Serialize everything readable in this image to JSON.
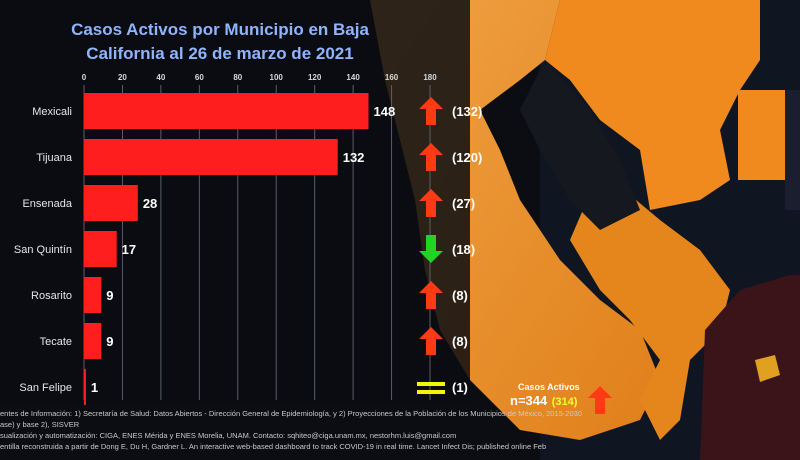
{
  "title_line1": "Casos Activos por Municipio en Baja",
  "title_line2": "California al 26 de marzo de 2021",
  "chart_data": {
    "type": "bar",
    "orientation": "horizontal",
    "title": "Casos Activos por Municipio en Baja California al 26 de marzo de 2021",
    "categories": [
      "Mexicali",
      "Tijuana",
      "Ensenada",
      "San Quintín",
      "Rosarito",
      "Tecate",
      "San Felipe"
    ],
    "values": [
      148,
      132,
      28,
      17,
      9,
      9,
      1
    ],
    "previous_labels": [
      "(132)",
      "(120)",
      "(27)",
      "(18)",
      "(8)",
      "(8)",
      "(1)"
    ],
    "trend": [
      "up",
      "up",
      "up",
      "down",
      "up",
      "up",
      "equal"
    ],
    "xticks": [
      0,
      20,
      40,
      60,
      80,
      100,
      120,
      140,
      160,
      180
    ],
    "xlim": [
      0,
      180
    ],
    "bar_color": "#ff1e1e",
    "grid": true
  },
  "totals": {
    "label": "Casos Activos",
    "value": "n=344",
    "previous": "(314)",
    "trend": "up"
  },
  "footer": {
    "line1": "entes de Información: 1) Secretaría de Salud: Datos Abiertos - Dirección General de Epidemiología, y 2) Proyecciones de la Población de los Municipios de México, 2015-2030",
    "line2": "ase) y base 2), SISVER",
    "line3": "sualización y automatización: CIGA, ENES Mérida y ENES Morelia, UNAM. Contacto: sqhiteo@ciga.unam.mx, nestorhm.luis@gmail.com",
    "line4": "entilla reconstruida a partir de Dong E, Du H, Gardner L. An interactive web-based dashboard to track COVID-19 in real time. Lancet Infect Dis; published online Feb"
  },
  "colors": {
    "up_arrow": "#ff3a14",
    "down_arrow": "#22d422",
    "equal": "#f5f500",
    "map_orange": "#e8952f",
    "map_dark": "#f08a1e"
  }
}
